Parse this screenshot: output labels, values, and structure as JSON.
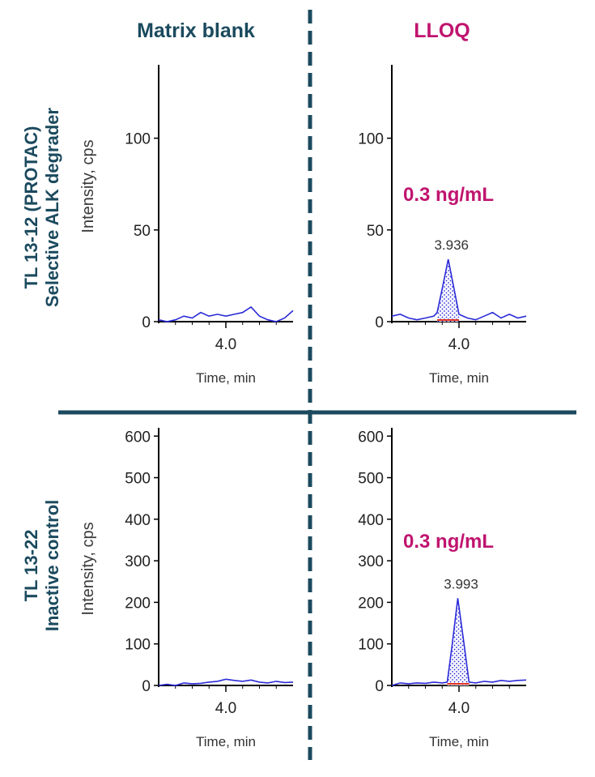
{
  "column_headers": {
    "blank": "Matrix blank",
    "lloq": "LLOQ"
  },
  "rows": [
    {
      "label_line1": "TL 13-12 (PROTAC)",
      "label_line2": "Selective ALK degrader"
    },
    {
      "label_line1": "TL 13-22",
      "label_line2": "Inactive control"
    }
  ],
  "colors": {
    "header_blank": "#1b4a5e",
    "header_lloq": "#c0146e",
    "divider": "#1b4a5e",
    "trace": "#2b2bd8",
    "baseline": "#e0301e",
    "concentration": "#c0146e"
  },
  "chart_data": [
    {
      "type": "line",
      "panel": "TL 13-12 matrix blank",
      "ylabel": "Intensity, cps",
      "xlabel": "Time, min",
      "xlim": [
        3.6,
        4.4
      ],
      "ylim": [
        0,
        140
      ],
      "xticks": [
        4.0
      ],
      "xtick_labels": [
        "4.0"
      ],
      "yticks": [
        0,
        50,
        100
      ],
      "ytick_labels": [
        "0",
        "50",
        "100"
      ],
      "series": [
        {
          "x": [
            3.6,
            3.65,
            3.7,
            3.75,
            3.8,
            3.85,
            3.9,
            3.95,
            4.0,
            4.05,
            4.1,
            4.15,
            4.2,
            4.25,
            4.3,
            4.35,
            4.4
          ],
          "y": [
            1,
            0,
            1,
            3,
            2,
            5,
            3,
            4,
            3,
            4,
            5,
            8,
            3,
            1,
            0,
            2,
            6
          ]
        }
      ]
    },
    {
      "type": "line",
      "panel": "TL 13-12 LLOQ",
      "xlabel": "Time, min",
      "xlim": [
        3.6,
        4.4
      ],
      "ylim": [
        0,
        140
      ],
      "xticks": [
        4.0
      ],
      "xtick_labels": [
        "4.0"
      ],
      "yticks": [
        0,
        50,
        100
      ],
      "ytick_labels": [
        "0",
        "50",
        "100"
      ],
      "concentration": "0.3 ng/mL",
      "peak": {
        "rt": 3.936,
        "label": "3.936",
        "height": 34,
        "start": 3.87,
        "end": 4.0
      },
      "series": [
        {
          "x": [
            3.6,
            3.65,
            3.7,
            3.75,
            3.8,
            3.85,
            3.87,
            3.9,
            3.936,
            3.97,
            4.0,
            4.05,
            4.1,
            4.15,
            4.2,
            4.25,
            4.3,
            4.35,
            4.4
          ],
          "y": [
            3,
            4,
            2,
            1,
            2,
            3,
            5,
            18,
            34,
            18,
            4,
            2,
            1,
            3,
            5,
            2,
            4,
            2,
            3
          ]
        }
      ]
    },
    {
      "type": "line",
      "panel": "TL 13-22 matrix blank",
      "ylabel": "Intensity, cps",
      "xlabel": "Time, min",
      "xlim": [
        3.6,
        4.4
      ],
      "ylim": [
        0,
        620
      ],
      "xticks": [
        4.0
      ],
      "xtick_labels": [
        "4.0"
      ],
      "yticks": [
        0,
        100,
        200,
        300,
        400,
        500,
        600
      ],
      "ytick_labels": [
        "0",
        "100",
        "200",
        "300",
        "400",
        "500",
        "600"
      ],
      "series": [
        {
          "x": [
            3.6,
            3.65,
            3.7,
            3.75,
            3.8,
            3.85,
            3.9,
            3.95,
            4.0,
            4.05,
            4.1,
            4.15,
            4.2,
            4.25,
            4.3,
            4.35,
            4.4
          ],
          "y": [
            0,
            3,
            0,
            6,
            4,
            5,
            8,
            10,
            15,
            12,
            10,
            13,
            8,
            6,
            10,
            7,
            8
          ]
        }
      ]
    },
    {
      "type": "line",
      "panel": "TL 13-22 LLOQ",
      "xlabel": "Time, min",
      "xlim": [
        3.6,
        4.4
      ],
      "ylim": [
        0,
        620
      ],
      "xticks": [
        4.0
      ],
      "xtick_labels": [
        "4.0"
      ],
      "yticks": [
        0,
        100,
        200,
        300,
        400,
        500,
        600
      ],
      "ytick_labels": [
        "0",
        "100",
        "200",
        "300",
        "400",
        "500",
        "600"
      ],
      "concentration": "0.3 ng/mL",
      "peak": {
        "rt": 3.993,
        "label": "3.993",
        "height": 210,
        "start": 3.93,
        "end": 4.06
      },
      "series": [
        {
          "x": [
            3.6,
            3.65,
            3.7,
            3.75,
            3.8,
            3.85,
            3.9,
            3.93,
            3.96,
            3.993,
            4.03,
            4.06,
            4.1,
            4.15,
            4.2,
            4.25,
            4.3,
            4.35,
            4.4
          ],
          "y": [
            0,
            6,
            4,
            6,
            5,
            8,
            6,
            8,
            100,
            210,
            100,
            8,
            6,
            10,
            8,
            12,
            10,
            12,
            13
          ]
        }
      ]
    }
  ]
}
